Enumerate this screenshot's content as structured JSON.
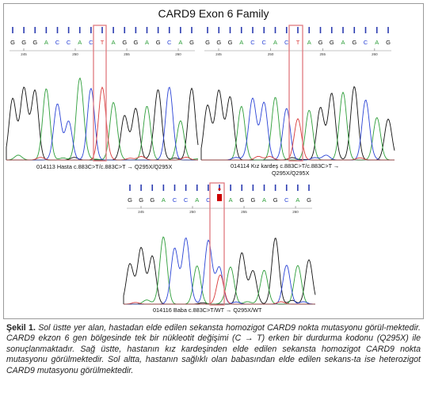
{
  "figure": {
    "title": "CARD9 Exon 6  Family",
    "panels": [
      {
        "sequence": [
          "G",
          "G",
          "G",
          "A",
          "C",
          "C",
          "A",
          "C",
          "T",
          "A",
          "G",
          "G",
          "A",
          "G",
          "C",
          "A",
          "G"
        ],
        "positions": [
          "245",
          "250",
          "255",
          "260"
        ],
        "label_lines": [
          "014113 Hasta c.883C>T/c.883C>T → Q295X/Q295X"
        ]
      },
      {
        "sequence": [
          "G",
          "G",
          "G",
          "A",
          "C",
          "C",
          "A",
          "C",
          "T",
          "A",
          "G",
          "G",
          "A",
          "G",
          "C",
          "A",
          "G"
        ],
        "positions": [
          "245",
          "250",
          "255",
          "260"
        ],
        "label_lines": [
          "014114 Kız kardeş  c.883C>T/c.883C>T →",
          "Q295X/Q295X"
        ]
      },
      {
        "sequence": [
          "G",
          "G",
          "G",
          "A",
          "C",
          "C",
          "A",
          "C",
          "",
          "A",
          "G",
          "G",
          "A",
          "G",
          "C",
          "A",
          "G"
        ],
        "positions": [
          "245",
          "250",
          "255",
          "260"
        ],
        "heterozygous_base_color": "#cc0000",
        "label_lines": [
          "014116 Baba c.883C>T/WT → Q295X/WT"
        ]
      }
    ],
    "highlight_color": "#e07a80",
    "colors": {
      "G": "#111111",
      "A": "#2e9e3a",
      "C": "#2a43d6",
      "T": "#d83a3a"
    }
  },
  "caption": {
    "label": "Şekil 1.",
    "text": " Sol üstte yer alan, hastadan elde edilen sekansta homozigot CARD9 nokta mutasyonu görül-mektedir. CARD9 ekzon 6 gen bölgesinde tek bir nükleotit değişimi (C → T) erken bir durdurma kodonu (Q295X) ile sonuçlanmaktadır. Sağ üstte, hastanın kız kardeşinden elde edilen sekansta homozigot CARD9 nokta mutasyonu görülmektedir. Sol altta, hastanın sağlıklı olan babasından elde edilen sekans-ta ise heterozigot CARD9 mutasyonu görülmektedir."
  }
}
